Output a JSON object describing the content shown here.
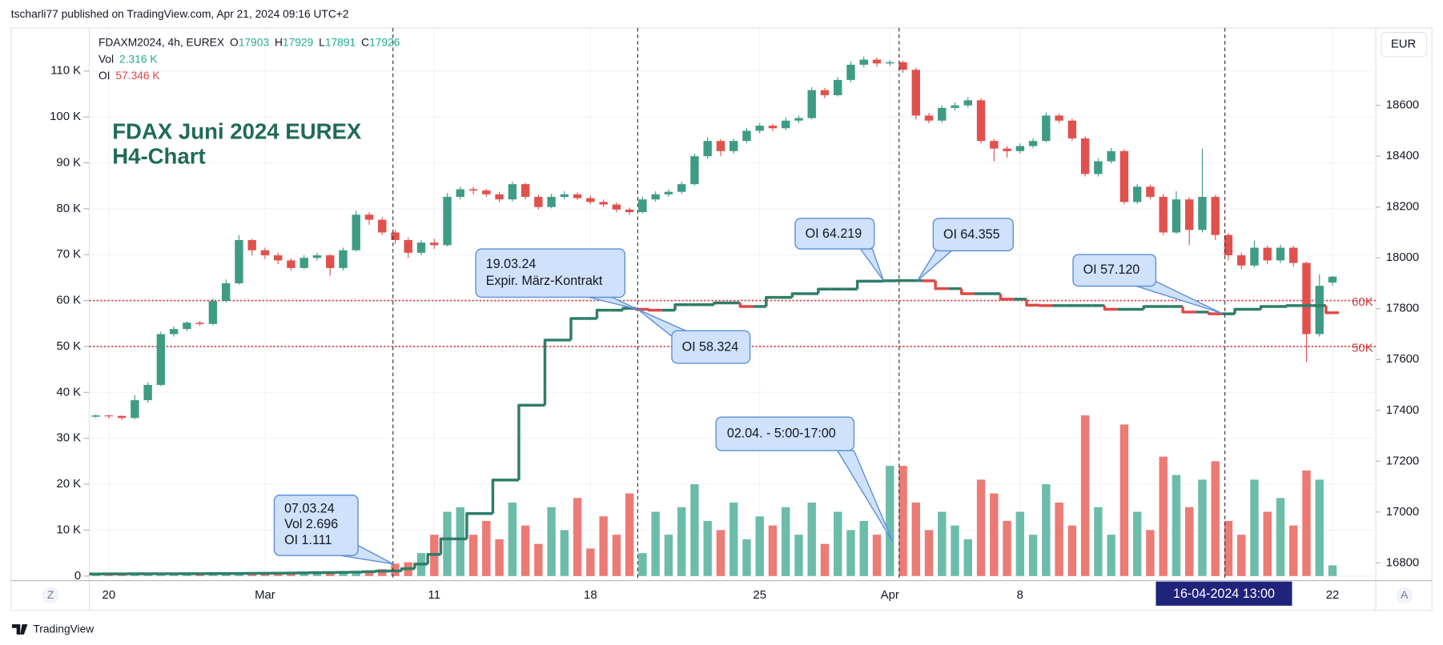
{
  "header": {
    "text": "tscharli77 published on TradingView.com, Apr 21, 2024 09:16 UTC+2"
  },
  "footer": {
    "brand": "TradingView"
  },
  "chart_data": {
    "type": "candlestick",
    "title": "FDAX Juni 2024 EUREX",
    "subtitle": "H4-Chart",
    "symbol": "FDAXM2024, 4h, EUREX",
    "ohlc_labels": [
      "O",
      "H",
      "L",
      "C"
    ],
    "currency": "EUR",
    "crosshair_label": "16-04-2024   13:00",
    "controls": {
      "left": "Z",
      "right": "A"
    },
    "categories": [
      null,
      "20",
      null,
      null,
      null,
      null,
      null,
      null,
      null,
      null,
      null,
      null,
      null,
      "Mar",
      null,
      null,
      null,
      null,
      null,
      null,
      null,
      null,
      null,
      null,
      null,
      null,
      "11",
      null,
      null,
      null,
      null,
      null,
      null,
      null,
      null,
      null,
      null,
      null,
      "18",
      null,
      null,
      null,
      null,
      null,
      null,
      null,
      null,
      null,
      null,
      null,
      null,
      "25",
      null,
      null,
      null,
      null,
      null,
      null,
      null,
      null,
      null,
      "Apr",
      null,
      null,
      null,
      null,
      null,
      null,
      null,
      null,
      null,
      "8",
      null,
      null,
      null,
      null,
      null,
      null,
      null,
      null,
      null,
      null,
      null,
      null,
      null,
      null,
      null,
      null,
      null,
      null,
      null,
      null,
      null,
      null,
      null,
      "22"
    ],
    "candles": {
      "axis": "y2",
      "up_color": "#3e9c85",
      "down_color": "#e0514d",
      "open": [
        17375,
        17380,
        17378,
        17370,
        17440,
        17500,
        17700,
        17720,
        17745,
        17740,
        17830,
        17900,
        18070,
        18030,
        18010,
        17990,
        17960,
        18000,
        18010,
        17960,
        18030,
        18170,
        18150,
        18100,
        18070,
        18020,
        18060,
        18050,
        18240,
        18270,
        18265,
        18250,
        18230,
        18290,
        18240,
        18200,
        18240,
        18250,
        18235,
        18220,
        18210,
        18190,
        18180,
        18230,
        18250,
        18260,
        18290,
        18400,
        18460,
        18420,
        18460,
        18500,
        18520,
        18510,
        18540,
        18550,
        18660,
        18640,
        18700,
        18760,
        18780,
        18765,
        18770,
        18740,
        18560,
        18540,
        18590,
        18600,
        18620,
        18460,
        18430,
        18420,
        18440,
        18460,
        18560,
        18540,
        18470,
        18330,
        18380,
        18420,
        18220,
        18280,
        18240,
        18100,
        18230,
        18110,
        18240,
        18090,
        18010,
        17970,
        18040,
        17990,
        18040,
        17980,
        17700,
        17903
      ],
      "high": [
        17385,
        17382,
        17380,
        17460,
        17510,
        17710,
        17730,
        17750,
        17752,
        17840,
        17915,
        18090,
        18075,
        18040,
        18020,
        17998,
        18010,
        18020,
        18015,
        18040,
        18185,
        18180,
        18160,
        18110,
        18080,
        18070,
        18075,
        18255,
        18280,
        18280,
        18272,
        18260,
        18300,
        18295,
        18250,
        18252,
        18262,
        18258,
        18245,
        18230,
        18218,
        18198,
        18240,
        18262,
        18270,
        18300,
        18410,
        18475,
        18468,
        18470,
        18512,
        18530,
        18528,
        18552,
        18560,
        18672,
        18668,
        18712,
        18772,
        18792,
        18788,
        18778,
        18776,
        18748,
        18570,
        18600,
        18612,
        18632,
        18628,
        18468,
        18440,
        18450,
        18470,
        18572,
        18568,
        18548,
        18478,
        18392,
        18432,
        18428,
        18290,
        18288,
        18250,
        18262,
        18238,
        18430,
        18248,
        18098,
        18020,
        18068,
        18048,
        18052,
        18048,
        17985,
        17935,
        17929
      ],
      "low": [
        17370,
        17368,
        17362,
        17365,
        17430,
        17495,
        17690,
        17712,
        17732,
        17735,
        17825,
        17895,
        18010,
        17995,
        17975,
        17950,
        17955,
        17990,
        17930,
        17950,
        18025,
        18130,
        18090,
        18055,
        18000,
        18010,
        18035,
        18045,
        18230,
        18250,
        18240,
        18220,
        18222,
        18230,
        18190,
        18195,
        18232,
        18228,
        18212,
        18200,
        18180,
        18170,
        18175,
        18222,
        18240,
        18252,
        18285,
        18390,
        18400,
        18410,
        18452,
        18490,
        18498,
        18502,
        18530,
        18545,
        18628,
        18635,
        18692,
        18750,
        18752,
        18755,
        18728,
        18545,
        18530,
        18532,
        18580,
        18592,
        18450,
        18380,
        18395,
        18410,
        18432,
        18455,
        18530,
        18460,
        18320,
        18320,
        18372,
        18210,
        18212,
        18230,
        18090,
        18095,
        18050,
        18100,
        18070,
        17990,
        17955,
        17962,
        17975,
        17980,
        17965,
        17590,
        17690,
        17891
      ],
      "close": [
        17380,
        17378,
        17370,
        17440,
        17500,
        17700,
        17720,
        17745,
        17740,
        17830,
        17900,
        18070,
        18030,
        18010,
        17990,
        17960,
        18000,
        18010,
        17960,
        18030,
        18170,
        18150,
        18100,
        18070,
        18020,
        18060,
        18050,
        18240,
        18270,
        18265,
        18250,
        18230,
        18290,
        18240,
        18200,
        18240,
        18250,
        18235,
        18220,
        18210,
        18190,
        18180,
        18230,
        18250,
        18260,
        18290,
        18400,
        18460,
        18420,
        18460,
        18500,
        18520,
        18510,
        18540,
        18550,
        18660,
        18640,
        18700,
        18760,
        18780,
        18765,
        18770,
        18740,
        18560,
        18540,
        18590,
        18600,
        18620,
        18460,
        18430,
        18420,
        18440,
        18460,
        18560,
        18540,
        18470,
        18330,
        18380,
        18420,
        18220,
        18280,
        18240,
        18100,
        18230,
        18110,
        18240,
        18090,
        18010,
        17970,
        18040,
        17990,
        18040,
        17980,
        17700,
        17890,
        17926
      ]
    },
    "series": [
      {
        "name": "Vol",
        "type": "bar",
        "up_color": "#6cbcaa",
        "down_color": "#ec7a75",
        "last_label": "2.316 K",
        "values": [
          400,
          300,
          350,
          500,
          600,
          700,
          500,
          450,
          400,
          600,
          700,
          800,
          500,
          400,
          450,
          500,
          600,
          550,
          700,
          800,
          900,
          1200,
          1500,
          2696,
          3000,
          5000,
          9000,
          14000,
          15000,
          9000,
          12000,
          8000,
          16000,
          11000,
          7000,
          15000,
          10000,
          17000,
          6000,
          13000,
          9000,
          18000,
          5000,
          14000,
          9000,
          15000,
          20000,
          12000,
          10000,
          16000,
          8000,
          13000,
          11000,
          15000,
          9000,
          16000,
          7000,
          14000,
          10000,
          12000,
          9000,
          24000,
          24000,
          16000,
          10000,
          14000,
          11000,
          8000,
          21000,
          18000,
          12000,
          14000,
          9000,
          20000,
          16000,
          11000,
          35000,
          15000,
          9000,
          33000,
          14000,
          10000,
          26000,
          22000,
          15000,
          21000,
          25000,
          12000,
          9000,
          21000,
          14000,
          17000,
          11000,
          23000,
          21000,
          2316
        ]
      },
      {
        "name": "OI",
        "type": "step",
        "up_color": "#2e7d68",
        "down_color": "#e04848",
        "last_label": "57.346 K",
        "values": [
          450,
          460,
          470,
          480,
          490,
          500,
          500,
          510,
          520,
          530,
          540,
          560,
          580,
          600,
          620,
          650,
          680,
          720,
          760,
          800,
          850,
          950,
          1050,
          1111,
          1600,
          2600,
          4700,
          8100,
          8100,
          13600,
          13600,
          20900,
          20900,
          37200,
          37200,
          51400,
          51400,
          56100,
          56100,
          57900,
          57900,
          58324,
          58100,
          57900,
          57900,
          59100,
          59100,
          59100,
          59500,
          59500,
          58700,
          58700,
          60700,
          60700,
          61500,
          61500,
          62500,
          62500,
          62500,
          64219,
          64219,
          64300,
          64355,
          64355,
          64300,
          62600,
          62600,
          61500,
          61500,
          61500,
          60300,
          60300,
          59000,
          58900,
          58900,
          58900,
          58900,
          58900,
          58100,
          58100,
          58100,
          58700,
          58700,
          58700,
          57500,
          57500,
          57120,
          57120,
          58100,
          58100,
          58700,
          58700,
          58900,
          58900,
          58900,
          57346
        ]
      }
    ],
    "ylim": [
      -1000,
      119400
    ],
    "yticks": [
      0,
      {
        "value": 10000,
        "label": "10 K"
      },
      {
        "value": 20000,
        "label": "20 K"
      },
      {
        "value": 30000,
        "label": "30 K"
      },
      {
        "value": 40000,
        "label": "40 K"
      },
      {
        "value": 50000,
        "label": "50 K"
      },
      {
        "value": 60000,
        "label": "60 K"
      },
      {
        "value": 70000,
        "label": "70 K"
      },
      {
        "value": 80000,
        "label": "80 K"
      },
      {
        "value": 90000,
        "label": "90 K"
      },
      {
        "value": 100000,
        "label": "100 K"
      },
      {
        "value": 110000,
        "label": "110 K"
      }
    ],
    "y2lim": [
      16730,
      18905
    ],
    "y2ticks": [
      16800,
      17000,
      17200,
      17400,
      17600,
      17800,
      18000,
      18200,
      18400,
      18600
    ],
    "grid": true,
    "hlines": [
      {
        "value": 60000,
        "label": "60K"
      },
      {
        "value": 50000,
        "label": "50K"
      }
    ],
    "hline_color": "#d93a3a",
    "annotations": [
      {
        "lines": [
          "07.03.24",
          "Vol  2.696",
          "OI   1.111"
        ]
      },
      {
        "lines": [
          "19.03.24",
          "Expir. März-Kontrakt"
        ]
      },
      {
        "lines": [
          "OI 58.324"
        ]
      },
      {
        "lines": [
          "OI 64.219"
        ]
      },
      {
        "lines": [
          "OI 64.355"
        ]
      },
      {
        "lines": [
          "02.04. - 5:00-17:00"
        ]
      },
      {
        "lines": [
          "OI 57.120"
        ]
      }
    ]
  }
}
